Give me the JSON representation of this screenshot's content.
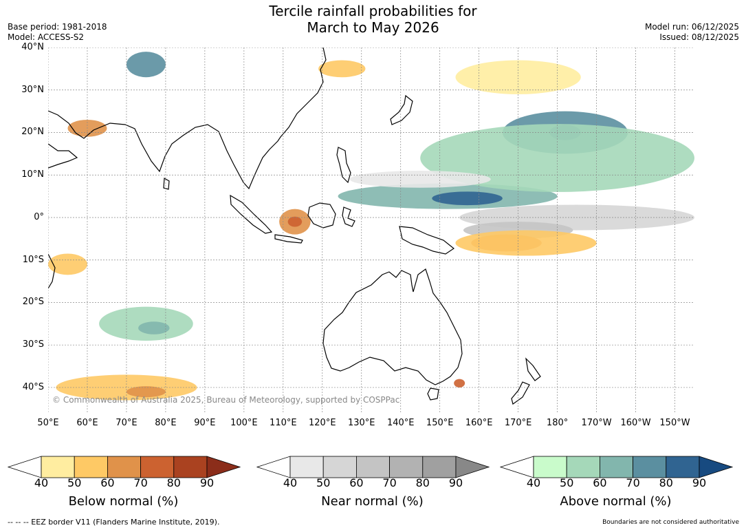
{
  "header": {
    "title_line1": "Tercile rainfall probabilities for",
    "title_line2": "March to May 2026",
    "base_period": "Base period: 1981-2018",
    "model": "Model: ACCESS-S2",
    "model_run": "Model run: 06/12/2025",
    "issued": "Issued: 08/12/2025"
  },
  "map": {
    "lat_labels": [
      "40°N",
      "30°N",
      "20°N",
      "10°N",
      "0°",
      "10°S",
      "20°S",
      "30°S",
      "40°S"
    ],
    "lon_labels": [
      "50°E",
      "60°E",
      "70°E",
      "80°E",
      "90°E",
      "100°E",
      "110°E",
      "120°E",
      "130°E",
      "140°E",
      "150°E",
      "160°E",
      "170°E",
      "180°",
      "170°W",
      "160°W",
      "150°W"
    ],
    "copyright": "© Commonwealth of Australia 2025, Bureau of Meteorology, supported by COSPPac",
    "regions": [
      {
        "category": "above",
        "level": 60,
        "lat": 5,
        "lon": 152,
        "rlat": 3,
        "rlon": 28
      },
      {
        "category": "above",
        "level": 80,
        "lat": 4.5,
        "lon": 157,
        "rlat": 1.6,
        "rlon": 9
      },
      {
        "category": "above",
        "level": 70,
        "lat": 20,
        "lon": -178,
        "rlat": 5,
        "rlon": 16
      },
      {
        "category": "above",
        "level": 80,
        "lat": 20,
        "lon": -178,
        "rlat": 1.8,
        "rlon": 4
      },
      {
        "category": "above",
        "level": 70,
        "lat": 36,
        "lon": 75,
        "rlat": 3,
        "rlon": 5
      },
      {
        "category": "above",
        "level": 50,
        "lat": 14,
        "lon": 180,
        "rlat": 8,
        "rlon": 35
      },
      {
        "category": "above",
        "level": 50,
        "lat": -25,
        "lon": 75,
        "rlat": 4,
        "rlon": 12
      },
      {
        "category": "above",
        "level": 60,
        "lat": -26,
        "lon": 77,
        "rlat": 1.5,
        "rlon": 4
      },
      {
        "category": "near",
        "level": 50,
        "lat": 0,
        "lon": 185,
        "rlat": 3,
        "rlon": 30
      },
      {
        "category": "near",
        "level": 60,
        "lat": -3,
        "lon": 170,
        "rlat": 2,
        "rlon": 14
      },
      {
        "category": "near",
        "level": 40,
        "lat": 9,
        "lon": 145,
        "rlat": 2,
        "rlon": 18
      },
      {
        "category": "below",
        "level": 60,
        "lat": -1,
        "lon": 113,
        "rlat": 3,
        "rlon": 4
      },
      {
        "category": "below",
        "level": 70,
        "lat": -1,
        "lon": 113,
        "rlat": 1.2,
        "rlon": 1.8
      },
      {
        "category": "below",
        "level": 60,
        "lat": -6,
        "lon": 167,
        "rlat": 2,
        "rlon": 9
      },
      {
        "category": "below",
        "level": 50,
        "lat": -6,
        "lon": 172,
        "rlat": 3,
        "rlon": 18
      },
      {
        "category": "below",
        "level": 60,
        "lat": 21,
        "lon": 60,
        "rlat": 2,
        "rlon": 5
      },
      {
        "category": "below",
        "level": 50,
        "lat": -40,
        "lon": 70,
        "rlat": 3,
        "rlon": 18
      },
      {
        "category": "below",
        "level": 60,
        "lat": -41,
        "lon": 75,
        "rlat": 1.3,
        "rlon": 5
      },
      {
        "category": "below",
        "level": 50,
        "lat": -11,
        "lon": 55,
        "rlat": 2.5,
        "rlon": 5
      },
      {
        "category": "below",
        "level": 40,
        "lat": 33,
        "lon": 170,
        "rlat": 4,
        "rlon": 16
      },
      {
        "category": "below",
        "level": 50,
        "lat": 35,
        "lon": 125,
        "rlat": 2,
        "rlon": 6
      },
      {
        "category": "below",
        "level": 70,
        "lat": -39,
        "lon": 155,
        "rlat": 1,
        "rlon": 1.4
      }
    ]
  },
  "colorbars": [
    {
      "name": "below",
      "label": "Below normal (%)",
      "ticks": [
        "40",
        "50",
        "60",
        "70",
        "80",
        "90"
      ],
      "colors": [
        "#ffeda0",
        "#fec965",
        "#e0924a",
        "#cc6230",
        "#aa4220"
      ],
      "extend": "#8b2d1a"
    },
    {
      "name": "near",
      "label": "Near normal (%)",
      "ticks": [
        "40",
        "50",
        "60",
        "70",
        "80",
        "90"
      ],
      "colors": [
        "#e8e8e8",
        "#d6d6d6",
        "#c4c4c4",
        "#b2b2b2",
        "#a0a0a0"
      ],
      "extend": "#888888"
    },
    {
      "name": "above",
      "label": "Above normal (%)",
      "ticks": [
        "40",
        "50",
        "60",
        "70",
        "80",
        "90"
      ],
      "colors": [
        "#c9fbcb",
        "#a5d8b9",
        "#82b6ad",
        "#5b8fa0",
        "#306491"
      ],
      "extend": "#174a80"
    }
  ],
  "footer": {
    "eez_note": "--  --  -- EEZ border V11 (Flanders Marine Institute, 2019).",
    "boundary_note": "Boundaries are not considered authoritative"
  }
}
